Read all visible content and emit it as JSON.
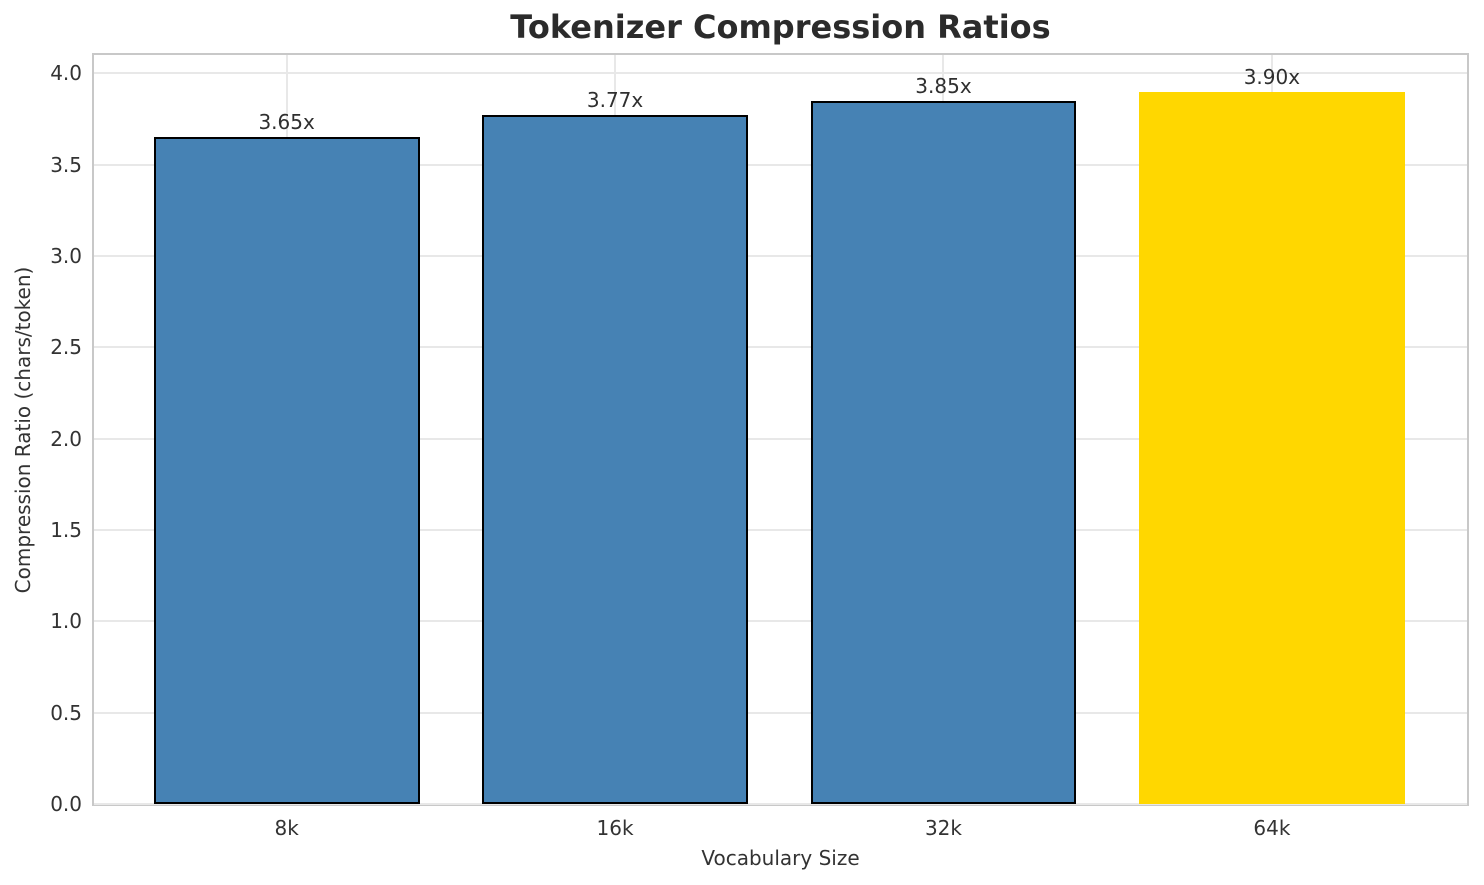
{
  "chart_data": {
    "type": "bar",
    "title": "Tokenizer Compression Ratios",
    "xlabel": "Vocabulary Size",
    "ylabel": "Compression Ratio (chars/token)",
    "categories": [
      "8k",
      "16k",
      "32k",
      "64k"
    ],
    "values": [
      3.65,
      3.77,
      3.85,
      3.9
    ],
    "bar_labels": [
      "3.65x",
      "3.77x",
      "3.85x",
      "3.90x"
    ],
    "bar_colors": [
      "#4682B4",
      "#4682B4",
      "#4682B4",
      "#FFD700"
    ],
    "bar_edge_colors": [
      "#000000",
      "#000000",
      "#000000",
      "none"
    ],
    "highlight_index": 3,
    "ylim": [
      0,
      4.1
    ],
    "yticks": [
      0.0,
      0.5,
      1.0,
      1.5,
      2.0,
      2.5,
      3.0,
      3.5,
      4.0
    ],
    "ytick_labels": [
      "0.0",
      "0.5",
      "1.0",
      "1.5",
      "2.0",
      "2.5",
      "3.0",
      "3.5",
      "4.0"
    ],
    "grid": true,
    "grid_color": "#e8e8e8",
    "spine_color": "#c8c8c8",
    "legend": "none"
  }
}
